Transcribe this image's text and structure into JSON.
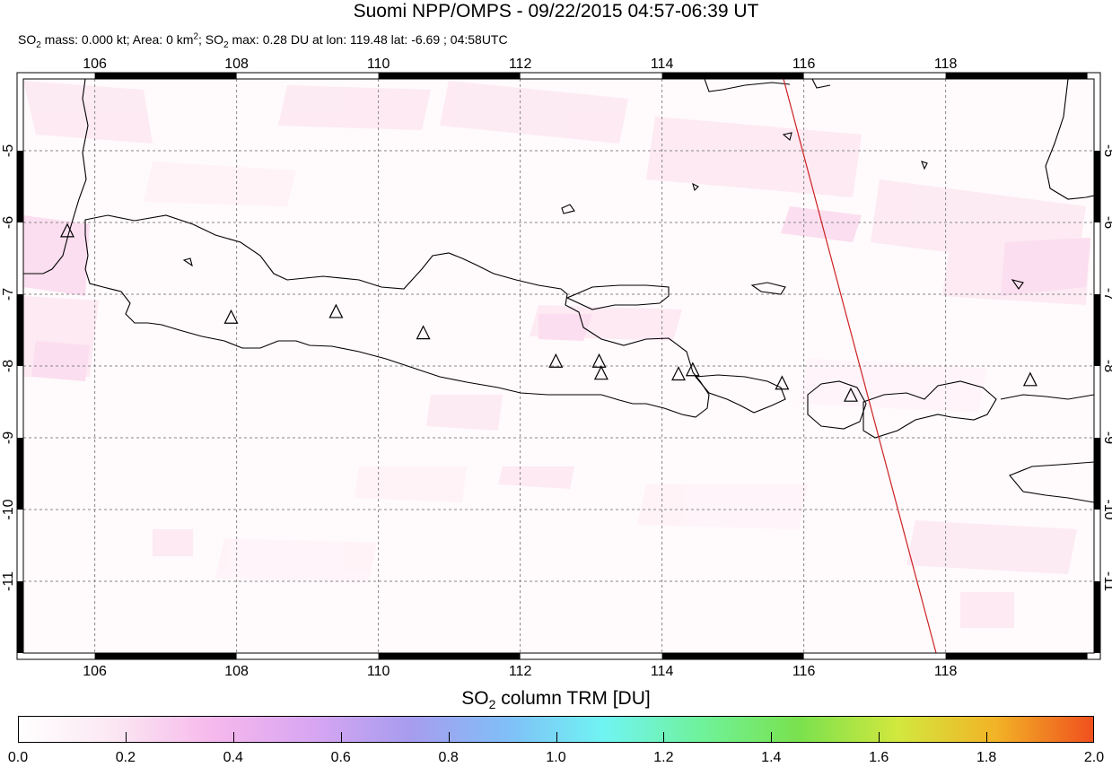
{
  "title": "Suomi NPP/OMPS - 09/22/2015 04:57-06:39 UT",
  "subtitle": {
    "so2_label": "SO",
    "so2_sub": "2",
    "mass_text": " mass: 0.000 kt; Area: 0 km",
    "area_sup": "2",
    "sep": "; SO",
    "so2_sub_2": "2",
    "max_text": " max: 0.28 DU at lon: 119.48 lat: -6.69 ; 04:58UTC"
  },
  "map": {
    "lon_range": [
      104.8,
      119.9
    ],
    "lat_range": [
      -12.05,
      -3.95
    ],
    "lon_ticks": [
      "106",
      "108",
      "110",
      "112",
      "114",
      "116",
      "118"
    ],
    "lat_ticks": [
      "-5",
      "-6",
      "-7",
      "-8",
      "-9",
      "-10",
      "-11"
    ],
    "gridlines": true,
    "volcano_marker": "triangle-outline",
    "orbit_track_color": "#cc2222",
    "volcanoes": [
      {
        "lon": 105.42,
        "lat": -6.1
      },
      {
        "lon": 107.73,
        "lat": -7.32
      },
      {
        "lon": 109.21,
        "lat": -7.24
      },
      {
        "lon": 110.44,
        "lat": -7.54
      },
      {
        "lon": 112.31,
        "lat": -7.94
      },
      {
        "lon": 112.92,
        "lat": -7.94
      },
      {
        "lon": 112.95,
        "lat": -8.11
      },
      {
        "lon": 114.04,
        "lat": -8.12
      },
      {
        "lon": 114.24,
        "lat": -8.06
      },
      {
        "lon": 115.5,
        "lat": -8.25
      },
      {
        "lon": 116.47,
        "lat": -8.42
      },
      {
        "lon": 119.0,
        "lat": -8.2
      }
    ]
  },
  "colorbar": {
    "title_prefix": "SO",
    "title_sub": "2",
    "title_suffix": " column TRM [DU]",
    "min": 0.0,
    "max": 2.0,
    "tick_labels": [
      "0.0",
      "0.2",
      "0.4",
      "0.6",
      "0.8",
      "1.0",
      "1.2",
      "1.4",
      "1.6",
      "1.8",
      "2.0"
    ],
    "colors": [
      "#ffffff",
      "#fbe6f2",
      "#f6b8ec",
      "#d8a6f2",
      "#a79cee",
      "#80bff8",
      "#70f4f2",
      "#6ff29a",
      "#7ae14d",
      "#d2e83e",
      "#f2b326",
      "#f0501e"
    ]
  }
}
